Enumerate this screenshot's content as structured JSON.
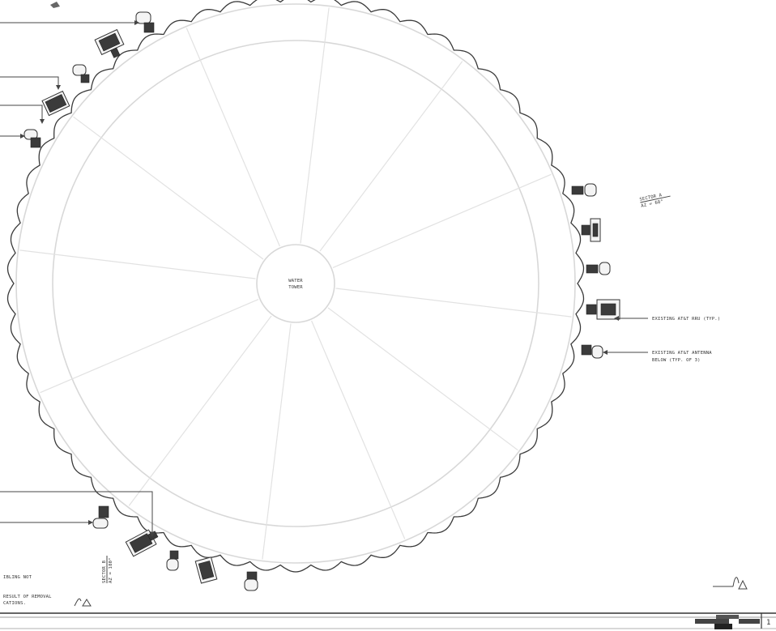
{
  "tower": {
    "label_line1": "WATER",
    "label_line2": "TOWER"
  },
  "callouts": {
    "rru": "EXISTING AT&T RRU (TYP.)",
    "antenna_line1": "EXISTING AT&T ANTENNA",
    "antenna_line2": "BELOW (TYP. OF 3)"
  },
  "sectors": {
    "a_line1": "SECTOR A",
    "a_line2": "AZ = 60°",
    "b_line1": "SECTOR B",
    "b_line2": "AZ = 180°"
  },
  "notes": {
    "left_top": "IBLING NOT",
    "left_bottom_line1": "RESULT OF REMOVAL",
    "left_bottom_line2": "CATIONS."
  },
  "title_block": {
    "sheet": "1"
  }
}
